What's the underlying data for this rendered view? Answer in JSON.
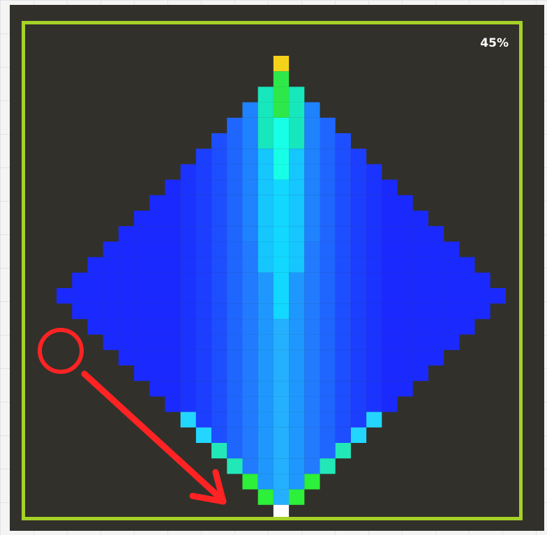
{
  "progress": {
    "label": "45%",
    "value": 0.45
  },
  "colors": {
    "background": "#32302b",
    "frame": "#a5d226",
    "annotation": "#ff2323",
    "tip_top": "#f5d21a",
    "tip_bottom": "#ffffff"
  },
  "annotation": {
    "circle": "start-marker",
    "arrow": "direction-arrow"
  }
}
